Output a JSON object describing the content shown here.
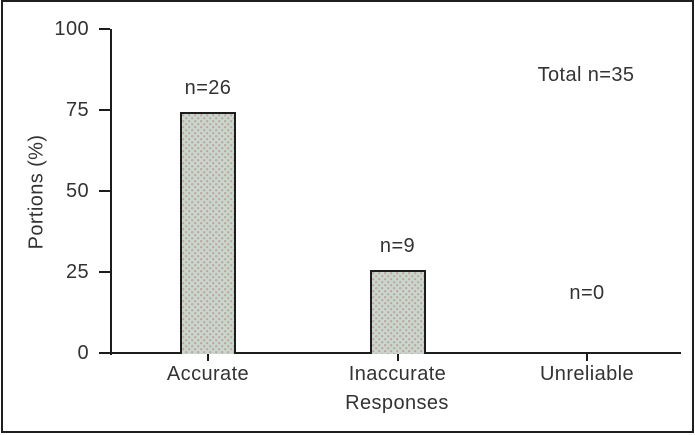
{
  "figure": {
    "background": "#ffffff",
    "border_color": "#1f1f1f"
  },
  "chart_data": {
    "type": "bar",
    "title": "",
    "categories": [
      "Accurate",
      "Inaccurate",
      "Unreliable"
    ],
    "values": [
      74.3,
      25.7,
      0
    ],
    "counts": [
      26,
      9,
      0
    ],
    "bar_labels": [
      "n=26",
      "n=9",
      "n=0"
    ],
    "annotation": "Total n=35",
    "xlabel": "Responses",
    "ylabel": "Portions (%)",
    "yticks": [
      0,
      25,
      50,
      75,
      100
    ],
    "ylim": [
      0,
      100
    ],
    "grid": false,
    "legend": null,
    "bar_fill": "#c6d8ce",
    "bar_dot_color": "#c69992",
    "bar_border": "#1c1c1c",
    "axis_color": "#1c1c1c",
    "text_color": "#333333"
  }
}
